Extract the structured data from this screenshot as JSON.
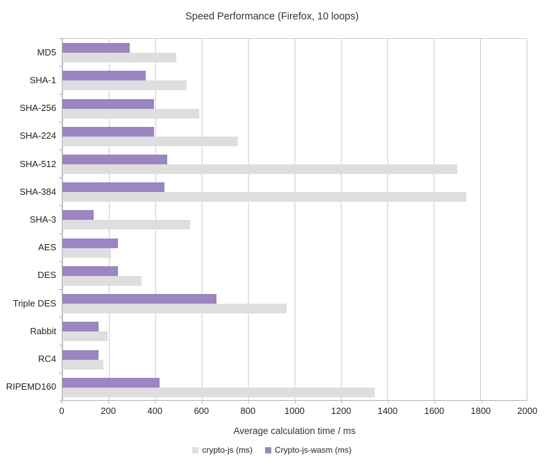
{
  "title": "Speed Performance (Firefox, 10 loops)",
  "chart_data": {
    "type": "bar",
    "orientation": "horizontal",
    "title": "Speed Performance (Firefox, 10 loops)",
    "xlabel": "Average calculation time / ms",
    "ylabel": "",
    "xlim": [
      0,
      2000
    ],
    "x_ticks": [
      0,
      200,
      400,
      600,
      800,
      1000,
      1200,
      1400,
      1600,
      1800,
      2000
    ],
    "grid": true,
    "legend_position": "bottom",
    "categories": [
      "MD5",
      "SHA-1",
      "SHA-256",
      "SHA-224",
      "SHA-512",
      "SHA-384",
      "SHA-3",
      "AES",
      "DES",
      "Triple DES",
      "Rabbit",
      "RC4",
      "RIPEMD160"
    ],
    "series": [
      {
        "name": "crypto-js (ms)",
        "color": "#dedede",
        "values": [
          490,
          535,
          590,
          755,
          1700,
          1740,
          550,
          210,
          340,
          965,
          195,
          175,
          1345
        ]
      },
      {
        "name": "Crypto-js-wasm (ms)",
        "color": "#9b85c2",
        "values": [
          290,
          360,
          395,
          395,
          450,
          440,
          135,
          240,
          240,
          665,
          155,
          156,
          420
        ]
      }
    ],
    "bar_draw_order": "wasm bar on top of each category pair, crypto-js bar below",
    "colors": {
      "gridline": "#c9c9c9",
      "axis": "#b0b0b0",
      "text": "#262626",
      "background": "#ffffff"
    }
  }
}
